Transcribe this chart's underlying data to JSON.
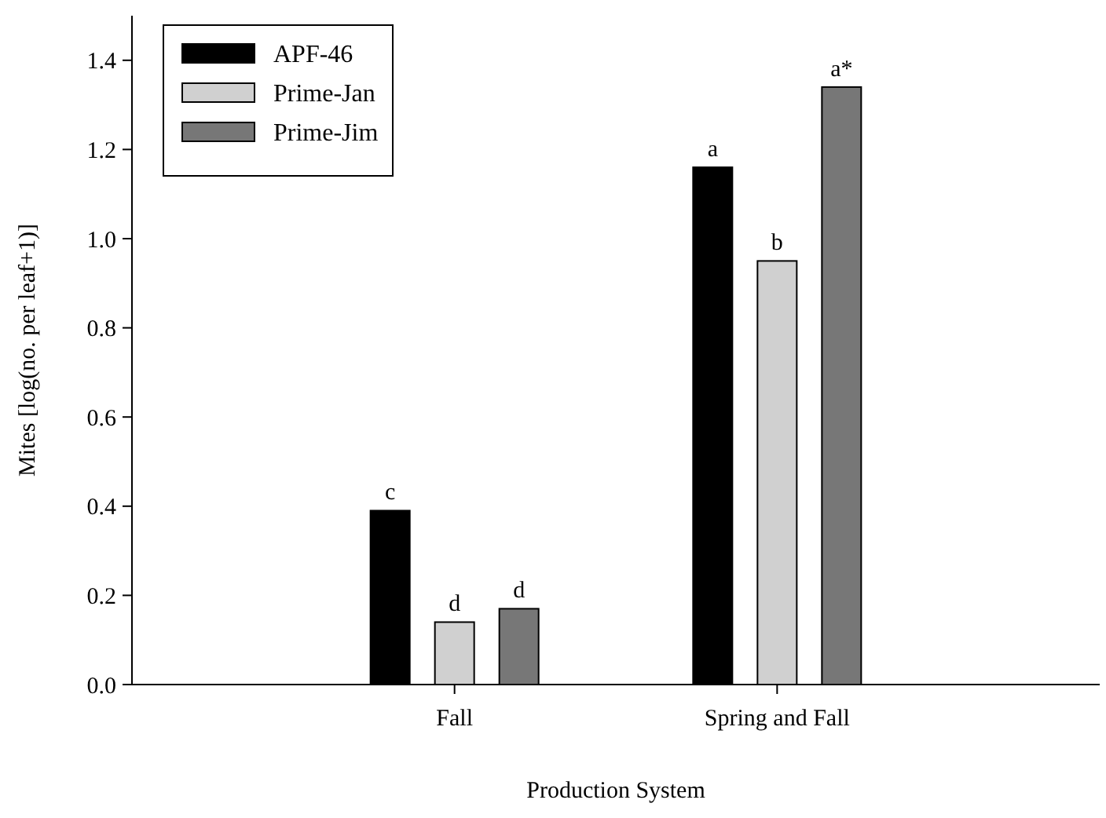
{
  "chart_data": {
    "type": "bar",
    "xlabel": "Production System",
    "ylabel": "Mites [log(no. per leaf+1)]",
    "categories": [
      "Fall",
      "Spring and Fall"
    ],
    "series": [
      {
        "name": "APF-46",
        "color": "#000000",
        "values": [
          0.39,
          1.16
        ],
        "value_labels": [
          "c",
          "a"
        ]
      },
      {
        "name": "Prime-Jan",
        "color": "#d0d0d0",
        "values": [
          0.14,
          0.95
        ],
        "value_labels": [
          "d",
          "b"
        ]
      },
      {
        "name": "Prime-Jim",
        "color": "#777777",
        "values": [
          0.17,
          1.34
        ],
        "value_labels": [
          "d",
          "a*"
        ]
      }
    ],
    "ylim": [
      0,
      1.5
    ],
    "yticks": [
      {
        "value": 0,
        "label": "0.0"
      },
      {
        "value": 0.2,
        "label": "0.2"
      },
      {
        "value": 0.4,
        "label": "0.4"
      },
      {
        "value": 0.6,
        "label": "0.6"
      },
      {
        "value": 0.8,
        "label": "0.8"
      },
      {
        "value": 1,
        "label": "1.0"
      },
      {
        "value": 1.2,
        "label": "1.2"
      },
      {
        "value": 1.4,
        "label": "1.4"
      }
    ],
    "legend": "top left",
    "grid": false
  }
}
